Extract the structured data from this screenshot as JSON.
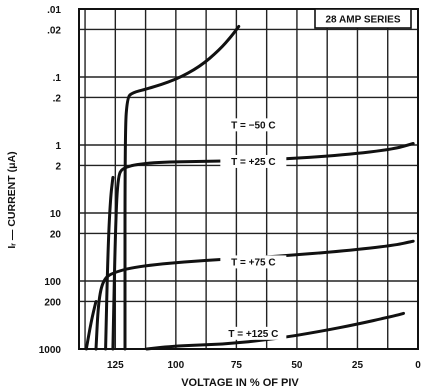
{
  "chart_data": {
    "type": "line",
    "title": "28 AMP SERIES",
    "xlabel": "VOLTAGE IN % OF PIV",
    "ylabel": "Iᵣ — CURRENT (μA)",
    "x_ticks": [
      "125",
      "100",
      "75",
      "50",
      "25",
      "0"
    ],
    "x_tick_values": [
      125,
      100,
      75,
      50,
      25,
      0
    ],
    "xlim": [
      140,
      0
    ],
    "x_reversed": true,
    "y_scale": "log",
    "ylim": [
      0.01,
      1000
    ],
    "y_inverted": true,
    "y_ticks": [
      {
        "label": ".01",
        "value": 0.01
      },
      {
        "label": ".02",
        "value": 0.02
      },
      {
        "label": ".1",
        "value": 0.1
      },
      {
        "label": ".2",
        "value": 0.2
      },
      {
        "label": "1",
        "value": 1
      },
      {
        "label": "2",
        "value": 2
      },
      {
        "label": "10",
        "value": 10
      },
      {
        "label": "20",
        "value": 20
      },
      {
        "label": "100",
        "value": 100
      },
      {
        "label": "200",
        "value": 200
      },
      {
        "label": "1000",
        "value": 1000
      }
    ],
    "grid": true,
    "series": [
      {
        "name": "T = −50 C",
        "x": [
          121,
          121,
          120,
          118,
          112,
          100,
          90,
          82,
          77,
          74
        ],
        "y": [
          1000,
          0.6,
          0.2,
          0.17,
          0.15,
          0.11,
          0.07,
          0.04,
          0.025,
          0.018
        ]
      },
      {
        "name": "T = +25 C",
        "x": [
          126,
          125,
          124,
          122,
          110,
          90,
          60,
          30,
          10,
          2
        ],
        "y": [
          1000,
          20,
          3,
          2.1,
          1.8,
          1.75,
          1.65,
          1.4,
          1.15,
          0.95
        ]
      },
      {
        "name": "T = +75 C",
        "x": [
          133,
          132,
          130,
          126,
          115,
          90,
          60,
          30,
          10,
          2
        ],
        "y": [
          1000,
          200,
          95,
          75,
          60,
          50,
          44,
          36,
          30,
          26
        ]
      },
      {
        "name": "T = +125 C",
        "x": [
          112,
          100,
          80,
          60,
          40,
          25,
          12,
          6
        ],
        "y": [
          1000,
          900,
          850,
          720,
          550,
          430,
          340,
          300
        ]
      }
    ],
    "extra_drops": [
      {
        "x": [
          129,
          128,
          127,
          126
        ],
        "y": [
          1000,
          30,
          6,
          3
        ]
      },
      {
        "x": [
          137,
          135,
          133
        ],
        "y": [
          1000,
          400,
          200
        ]
      }
    ],
    "annotations": [
      {
        "text": "T = −50 C",
        "x": 68,
        "y": 0.55
      },
      {
        "text": "T = +25 C",
        "x": 68,
        "y": 1.9
      },
      {
        "text": "T = +75 C",
        "x": 68,
        "y": 57
      },
      {
        "text": "T = +125 C",
        "x": 68,
        "y": 640
      }
    ]
  }
}
